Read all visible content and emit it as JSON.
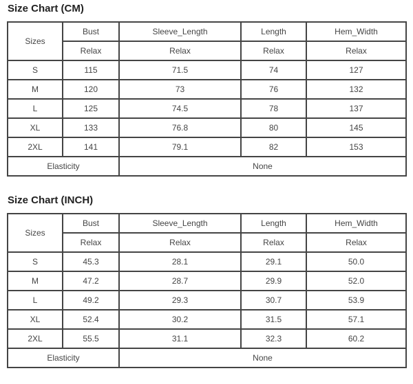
{
  "charts": [
    {
      "title": "Size Chart (CM)",
      "sizes_label": "Sizes",
      "columns": [
        "Bust",
        "Sleeve_Length",
        "Length",
        "Hem_Width"
      ],
      "fit": [
        "Relax",
        "Relax",
        "Relax",
        "Relax"
      ],
      "rows": [
        {
          "size": "S",
          "values": [
            "115",
            "71.5",
            "74",
            "127"
          ]
        },
        {
          "size": "M",
          "values": [
            "120",
            "73",
            "76",
            "132"
          ]
        },
        {
          "size": "L",
          "values": [
            "125",
            "74.5",
            "78",
            "137"
          ]
        },
        {
          "size": "XL",
          "values": [
            "133",
            "76.8",
            "80",
            "145"
          ]
        },
        {
          "size": "2XL",
          "values": [
            "141",
            "79.1",
            "82",
            "153"
          ]
        }
      ],
      "elasticity_label": "Elasticity",
      "elasticity_value": "None"
    },
    {
      "title": "Size Chart (INCH)",
      "sizes_label": "Sizes",
      "columns": [
        "Bust",
        "Sleeve_Length",
        "Length",
        "Hem_Width"
      ],
      "fit": [
        "Relax",
        "Relax",
        "Relax",
        "Relax"
      ],
      "rows": [
        {
          "size": "S",
          "values": [
            "45.3",
            "28.1",
            "29.1",
            "50.0"
          ]
        },
        {
          "size": "M",
          "values": [
            "47.2",
            "28.7",
            "29.9",
            "52.0"
          ]
        },
        {
          "size": "L",
          "values": [
            "49.2",
            "29.3",
            "30.7",
            "53.9"
          ]
        },
        {
          "size": "XL",
          "values": [
            "52.4",
            "30.2",
            "31.5",
            "57.1"
          ]
        },
        {
          "size": "2XL",
          "values": [
            "55.5",
            "31.1",
            "32.3",
            "60.2"
          ]
        }
      ],
      "elasticity_label": "Elasticity",
      "elasticity_value": "None"
    }
  ]
}
